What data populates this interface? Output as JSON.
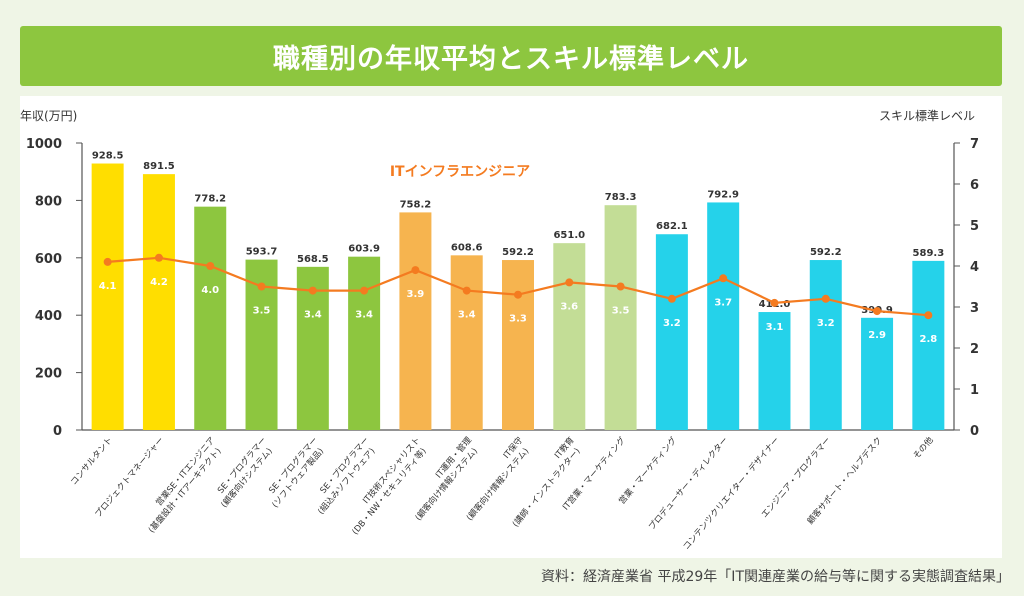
{
  "title": "職種別の年収平均とスキル標準レベル",
  "source": "資料：経済産業省 平成29年「IT関連産業の給与等に関する実態調査結果」",
  "colors": {
    "title_bg": "#8dc63f",
    "yellow": "#ffde00",
    "green": "#8dc63f",
    "orange": "#f6b44f",
    "lightgreen": "#c3dd96",
    "cyan": "#25d2ea",
    "line": "#f47b20",
    "annotation": "#f47b20"
  },
  "chart_data": {
    "type": "bar",
    "title": "職種別の年収平均とスキル標準レベル",
    "ylabel_left": "年収(万円)",
    "ylabel_right": "スキル標準レベル",
    "ylim_left": [
      0,
      1000
    ],
    "yticks_left": [
      "0",
      "200",
      "400",
      "600",
      "800",
      "1000"
    ],
    "ylim_right": [
      0,
      7
    ],
    "yticks_right": [
      "0",
      "1",
      "2",
      "3",
      "4",
      "5",
      "6",
      "7"
    ],
    "annotation": "ITインフラエンジニア",
    "categories": [
      {
        "lines": [
          "コンサルタント"
        ],
        "color": "yellow"
      },
      {
        "lines": [
          "プロジェクトマネージャー"
        ],
        "color": "yellow"
      },
      {
        "lines": [
          "営業SE・ITエンジニア",
          "(基盤設計・ITアーキテクト)"
        ],
        "color": "green"
      },
      {
        "lines": [
          "SE・プログラマー",
          "(顧客向けシステム)"
        ],
        "color": "green"
      },
      {
        "lines": [
          "SE・プログラマー",
          "(ソフトウェア製品)"
        ],
        "color": "green"
      },
      {
        "lines": [
          "SE・プログラマー",
          "(組込みソフトウェア)"
        ],
        "color": "green"
      },
      {
        "lines": [
          "IT技術スペシャリスト",
          "(DB・NW・セキュリティ等)"
        ],
        "color": "orange"
      },
      {
        "lines": [
          "IT運用・管理",
          "(顧客向け情報システム)"
        ],
        "color": "orange"
      },
      {
        "lines": [
          "IT保守",
          "(顧客向け情報システム)"
        ],
        "color": "orange"
      },
      {
        "lines": [
          "IT教育",
          "(講師・インストラクター)"
        ],
        "color": "lightgreen"
      },
      {
        "lines": [
          "IT営業・マーケティング"
        ],
        "color": "lightgreen"
      },
      {
        "lines": [
          "営業・マーケティング"
        ],
        "color": "cyan"
      },
      {
        "lines": [
          "プロデューサー・ディレクター"
        ],
        "color": "cyan"
      },
      {
        "lines": [
          "コンテンツクリエイター・デザイナー"
        ],
        "color": "cyan"
      },
      {
        "lines": [
          "エンジニア・プログラマー"
        ],
        "color": "cyan"
      },
      {
        "lines": [
          "顧客サポート・ヘルプデスク"
        ],
        "color": "cyan"
      },
      {
        "lines": [
          "その他"
        ],
        "color": "cyan"
      }
    ],
    "series": [
      {
        "name": "年収(万円)",
        "type": "bar",
        "axis": "left",
        "values": [
          928.5,
          891.5,
          778.2,
          593.7,
          568.5,
          603.9,
          758.2,
          608.6,
          592.2,
          651.0,
          783.3,
          682.1,
          792.9,
          411.0,
          592.2,
          390.9,
          589.3
        ],
        "labels": [
          "928.5",
          "891.5",
          "778.2",
          "593.7",
          "568.5",
          "603.9",
          "758.2",
          "608.6",
          "592.2",
          "651.0",
          "783.3",
          "682.1",
          "792.9",
          "411.0",
          "592.2",
          "390.9",
          "589.3"
        ]
      },
      {
        "name": "スキル標準レベル",
        "type": "line",
        "axis": "right",
        "values": [
          4.1,
          4.2,
          4.0,
          3.5,
          3.4,
          3.4,
          3.9,
          3.4,
          3.3,
          3.6,
          3.5,
          3.2,
          3.7,
          3.1,
          3.2,
          2.9,
          2.8
        ],
        "labels": [
          "4.1",
          "4.2",
          "4.0",
          "3.5",
          "3.4",
          "3.4",
          "3.9",
          "3.4",
          "3.3",
          "3.6",
          "3.5",
          "3.2",
          "3.7",
          "3.1",
          "3.2",
          "2.9",
          "2.8"
        ]
      }
    ]
  }
}
